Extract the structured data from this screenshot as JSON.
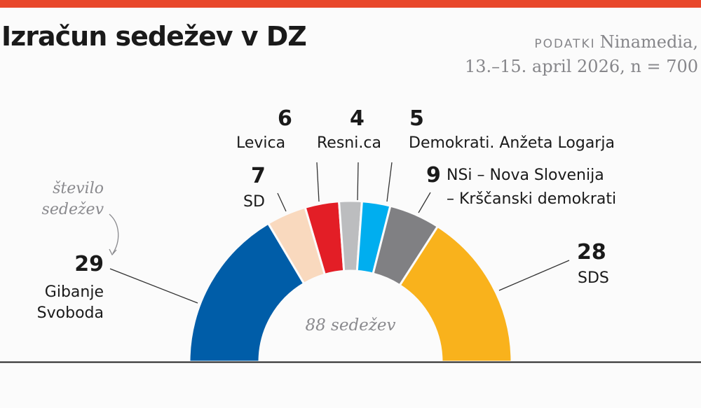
{
  "header": {
    "title": "Izračun sedežev v DZ",
    "source_label": "PODATKI",
    "source_line1": "Ninamedia,",
    "source_line2": "13.–15. april 2026, n = 700",
    "accent_color": "#e8472b"
  },
  "chart_data": {
    "type": "pie",
    "subtype": "parliament-semicircle",
    "total_label": "88 sedežev",
    "annotation": "število sedežev",
    "total": 88,
    "series": [
      {
        "name": "Gibanje Svoboda",
        "name_line1": "Gibanje",
        "name_line2": "Svoboda",
        "value": 29,
        "color": "#005da8"
      },
      {
        "name": "SD",
        "value": 7,
        "color": "#f9d9be"
      },
      {
        "name": "Levica",
        "value": 6,
        "color": "#e31e26"
      },
      {
        "name": "Resni.ca",
        "value": 4,
        "color": "#bcbdbf"
      },
      {
        "name": "Demokrati. Anžeta Logarja",
        "value": 5,
        "color": "#00aeef"
      },
      {
        "name": "NSi – Nova Slovenija – Krščanski demokrati",
        "name_line1": "NSi – Nova Slovenija",
        "name_line2": "– Krščanski demokrati",
        "value": 9,
        "color": "#808083"
      },
      {
        "name": "SDS",
        "value": 28,
        "color": "#f9b21c"
      }
    ]
  }
}
